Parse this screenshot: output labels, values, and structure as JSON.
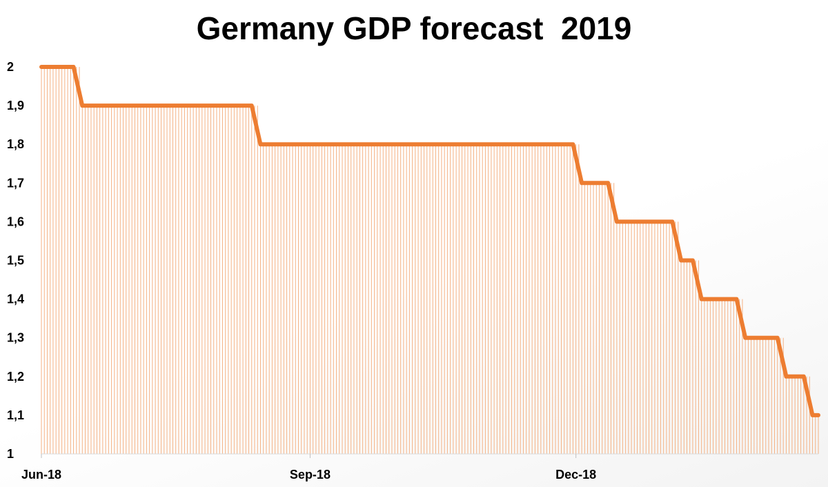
{
  "chart_data": {
    "type": "line",
    "title": "Germany GDP forecast  2019",
    "xlabel": "",
    "ylabel": "",
    "ylim": [
      1,
      2
    ],
    "y_ticks": [
      "2",
      "1,9",
      "1,8",
      "1,7",
      "1,6",
      "1,5",
      "1,4",
      "1,3",
      "1,2",
      "1,1",
      "1"
    ],
    "y_tick_values": [
      2,
      1.9,
      1.8,
      1.7,
      1.6,
      1.5,
      1.4,
      1.3,
      1.2,
      1.1,
      1
    ],
    "x_ticks": [
      "Jun-18",
      "Sep-18",
      "Dec-18"
    ],
    "x_tick_dates": [
      "2018-06-01",
      "2018-09-01",
      "2018-12-01"
    ],
    "xlim": [
      "2018-06-01",
      "2019-02-22"
    ],
    "line_style": "step",
    "grid": false,
    "drop_lines": true,
    "colors": {
      "line": "#ED7D31",
      "drop_lines": "#F4B183"
    },
    "series": [
      {
        "x": [
          "2018-06-01",
          "2018-06-15",
          "2018-08-15",
          "2018-12-03",
          "2018-12-15",
          "2019-01-06",
          "2019-01-13",
          "2019-01-28",
          "2019-02-11",
          "2019-02-20"
        ],
        "values": [
          2.0,
          1.9,
          1.8,
          1.7,
          1.6,
          1.5,
          1.4,
          1.3,
          1.2,
          1.1
        ]
      }
    ]
  }
}
